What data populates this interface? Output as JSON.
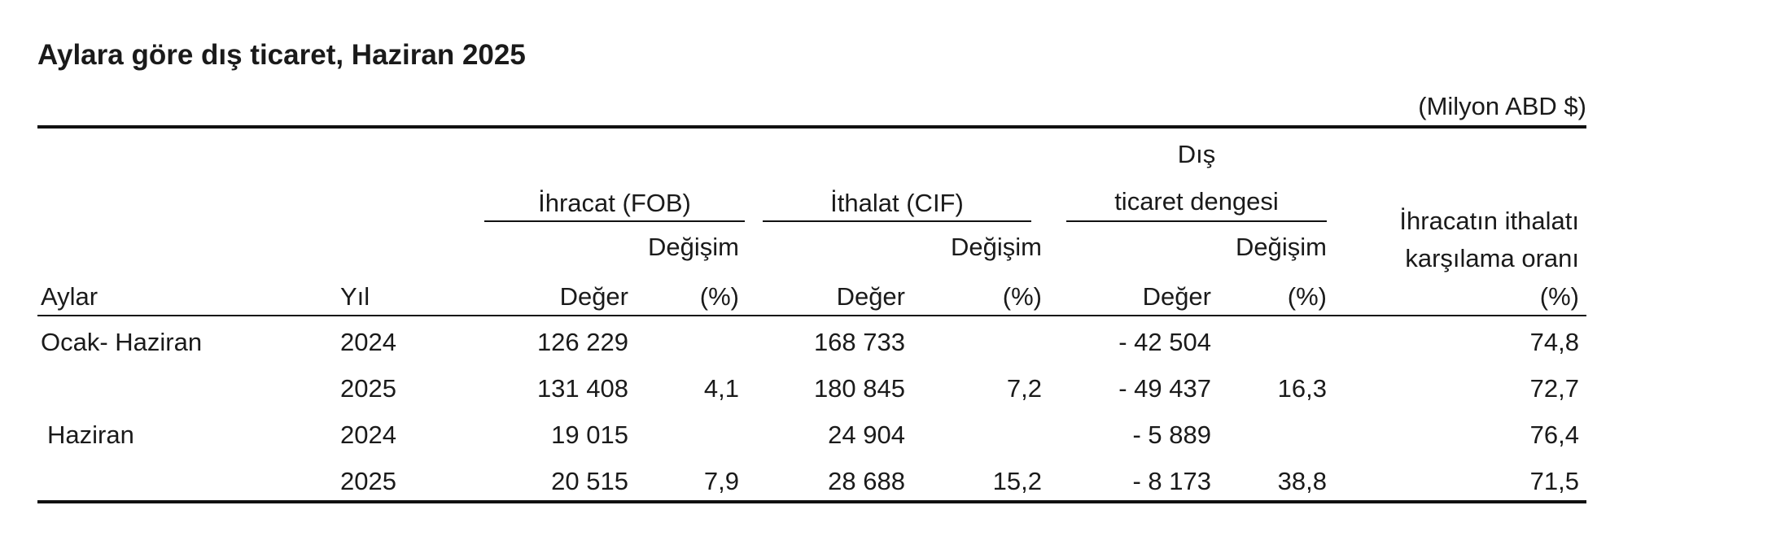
{
  "title": "Aylara göre dış ticaret, Haziran 2025",
  "unit": "(Milyon ABD $)",
  "header": {
    "col_months": "Aylar",
    "col_year": "Yıl",
    "export_group": "İhracat (FOB)",
    "import_group": "İthalat (CIF)",
    "balance_group_line1": "Dış",
    "balance_group_line2": "ticaret dengesi",
    "change_label": "Değişim",
    "value_label": "Değer",
    "pct_label": "(%)",
    "coverage_line1": "İhracatın ithalatı",
    "coverage_line2": "karşılama oranı",
    "coverage_pct": "(%)"
  },
  "rows": [
    {
      "month": "Ocak- Haziran",
      "year": "2024",
      "export_value": "126 229",
      "export_change": "",
      "import_value": "168 733",
      "import_change": "",
      "balance_value": "- 42 504",
      "balance_change": "",
      "coverage": "74,8"
    },
    {
      "month": "",
      "year": "2025",
      "export_value": "131 408",
      "export_change": "4,1",
      "import_value": "180 845",
      "import_change": "7,2",
      "balance_value": "- 49 437",
      "balance_change": "16,3",
      "coverage": "72,7"
    },
    {
      "month": "Haziran",
      "year": "2024",
      "export_value": "19 015",
      "export_change": "",
      "import_value": "24 904",
      "import_change": "",
      "balance_value": "- 5 889",
      "balance_change": "",
      "coverage": "76,4"
    },
    {
      "month": "",
      "year": "2025",
      "export_value": "20 515",
      "export_change": "7,9",
      "import_value": "28 688",
      "import_change": "15,2",
      "balance_value": "- 8 173",
      "balance_change": "38,8",
      "coverage": "71,5"
    }
  ]
}
